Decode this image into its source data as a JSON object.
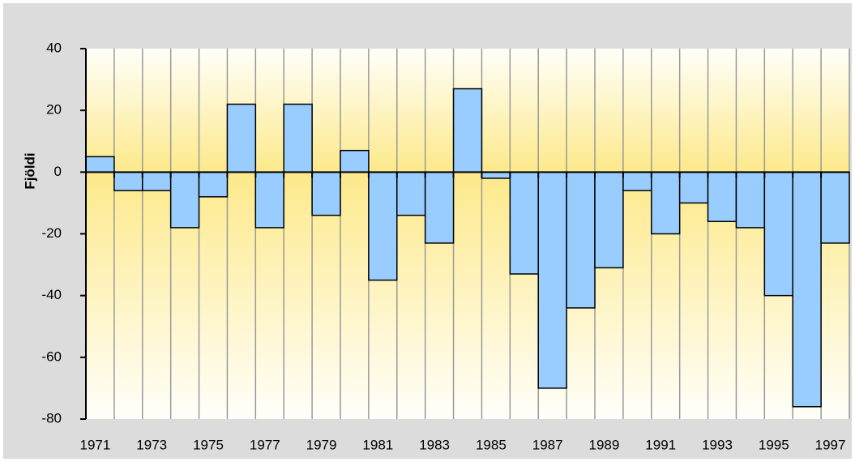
{
  "chart_data": {
    "type": "bar",
    "y_label": "Fjöldi",
    "categories": [
      "1971",
      null,
      "1973",
      null,
      "1975",
      null,
      "1977",
      null,
      "1979",
      null,
      "1981",
      null,
      "1983",
      null,
      "1985",
      null,
      "1987",
      null,
      "1989",
      null,
      "1991",
      null,
      "1993",
      null,
      "1995",
      null,
      "1997"
    ],
    "values": [
      5,
      -6,
      -6,
      -18,
      -8,
      22,
      -18,
      22,
      -14,
      7,
      -35,
      -14,
      -23,
      27,
      -2,
      -33,
      -70,
      -44,
      -31,
      -6,
      -20,
      -10,
      -16,
      -18,
      -40,
      -76,
      -23
    ],
    "color": "#99ccff",
    "ylim": [
      -80,
      40
    ],
    "yticks": [
      -80,
      -60,
      -40,
      -20,
      0,
      20,
      40
    ]
  }
}
